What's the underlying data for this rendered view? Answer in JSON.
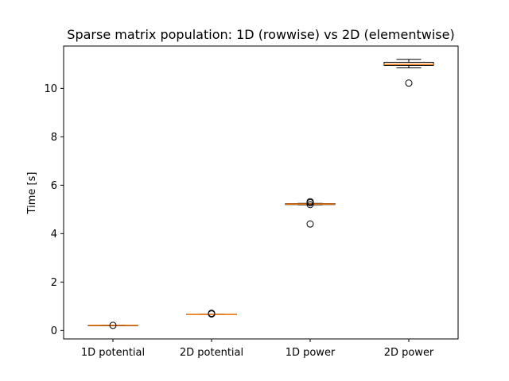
{
  "chart_data": {
    "type": "box",
    "title": "Sparse matrix population: 1D (rowwise) vs 2D (elementwise)",
    "xlabel": "",
    "ylabel": "Time [s]",
    "ylim": [
      -0.35,
      11.75
    ],
    "yticks": [
      0,
      2,
      4,
      6,
      8,
      10
    ],
    "grid": false,
    "categories": [
      "1D potential",
      "2D potential",
      "1D power",
      "2D power"
    ],
    "boxes": [
      {
        "whislo": 0.2,
        "q1": 0.2,
        "med": 0.21,
        "q3": 0.21,
        "whishi": 0.22,
        "fliers": [
          0.21
        ]
      },
      {
        "whislo": 0.66,
        "q1": 0.66,
        "med": 0.66,
        "q3": 0.67,
        "whishi": 0.67,
        "fliers": [
          0.71,
          0.68
        ]
      },
      {
        "whislo": 5.19,
        "q1": 5.2,
        "med": 5.22,
        "q3": 5.24,
        "whishi": 5.25,
        "fliers": [
          5.32,
          5.28,
          5.2,
          4.4
        ]
      },
      {
        "whislo": 10.85,
        "q1": 10.95,
        "med": 10.99,
        "q3": 11.08,
        "whishi": 11.2,
        "fliers": [
          10.22
        ]
      }
    ],
    "colors": {
      "box": "#000000",
      "median": "#ff7f0e"
    }
  }
}
